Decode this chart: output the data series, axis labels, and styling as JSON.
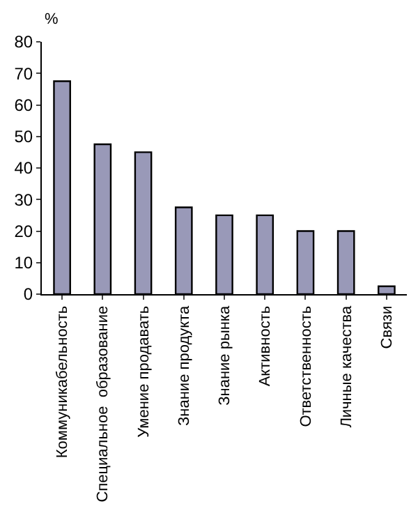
{
  "chart_data": {
    "type": "bar",
    "ylabel": "%",
    "categories": [
      "Коммуникабельность",
      "Специальное  образование",
      "Умение продавать",
      "Знание продукта",
      "Знание рынка",
      "Активность",
      "Ответственность",
      "Личные качества",
      "Связи"
    ],
    "values": [
      67.5,
      47.5,
      45,
      27.5,
      25,
      25,
      20,
      20,
      2.5
    ],
    "color": "#9999b8",
    "ylim": [
      0,
      80
    ],
    "yticks": [
      0,
      10,
      20,
      30,
      40,
      50,
      60,
      70,
      80
    ]
  }
}
